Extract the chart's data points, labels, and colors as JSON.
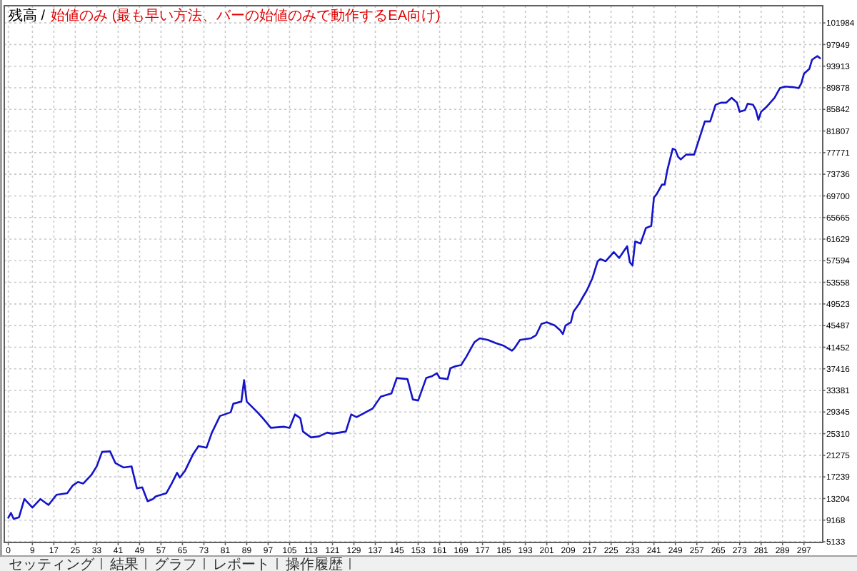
{
  "chart_data": {
    "type": "line",
    "title": "残高 /",
    "subtitle": "始値のみ (最も早い方法、バーの始値のみで動作するEA向け)",
    "annotations": [
      "セッティング",
      "結果",
      "グラフ",
      "レポート",
      "操作履歴"
    ],
    "x": [
      0,
      1,
      2,
      4,
      6,
      9,
      12,
      15,
      18,
      22,
      24,
      26,
      28,
      31,
      33,
      35,
      38,
      40,
      43,
      46,
      48,
      50,
      52,
      54,
      55,
      59,
      61,
      63,
      64,
      66,
      69,
      71,
      74,
      76,
      79,
      83,
      84,
      87,
      88,
      89,
      93,
      95,
      98,
      103,
      105,
      107,
      109,
      110,
      113,
      116,
      119,
      121,
      126,
      128,
      130,
      136,
      139,
      143,
      145,
      149,
      151,
      153,
      156,
      158,
      160,
      161,
      164,
      165,
      167,
      169,
      171,
      174,
      176,
      179,
      182,
      185,
      188,
      189,
      191,
      195,
      197,
      199,
      201,
      204,
      206,
      207,
      208,
      210,
      211,
      213,
      214,
      216,
      218,
      220,
      221,
      223,
      226,
      228,
      231,
      232,
      233,
      234,
      236,
      238,
      240,
      241,
      242,
      244,
      245,
      246,
      248,
      249,
      250,
      251,
      253,
      256,
      258,
      260,
      262,
      264,
      266,
      268,
      270,
      272,
      273,
      275,
      276,
      278,
      279,
      280,
      281,
      283,
      286,
      288,
      290,
      293,
      295,
      296,
      297,
      299,
      300,
      302,
      303
    ],
    "values": [
      9600,
      10500,
      9400,
      9700,
      13100,
      11500,
      13100,
      12000,
      13900,
      14200,
      15600,
      16300,
      16000,
      17600,
      19200,
      21900,
      22000,
      19800,
      19000,
      19200,
      15100,
      15300,
      12700,
      13100,
      13600,
      14200,
      16000,
      18000,
      17100,
      18400,
      21500,
      23000,
      22700,
      25500,
      28600,
      29300,
      30900,
      31300,
      35300,
      31300,
      29300,
      28200,
      26400,
      26600,
      26400,
      28900,
      28200,
      25700,
      24600,
      24800,
      25500,
      25300,
      25700,
      28900,
      28400,
      30000,
      32200,
      32800,
      35700,
      35500,
      31700,
      31500,
      35700,
      36000,
      36600,
      35700,
      35500,
      37500,
      37900,
      38100,
      39700,
      42400,
      43100,
      42800,
      42200,
      41700,
      40800,
      41300,
      42800,
      43100,
      43700,
      45800,
      46100,
      45500,
      44600,
      43900,
      45500,
      46100,
      48100,
      49500,
      50400,
      52100,
      54300,
      57500,
      57900,
      57500,
      59200,
      58100,
      60300,
      57300,
      56700,
      61200,
      60800,
      63700,
      64100,
      69400,
      70000,
      71800,
      71800,
      74500,
      78500,
      78300,
      77000,
      76500,
      77400,
      77400,
      80500,
      83600,
      83600,
      86700,
      87100,
      87100,
      88000,
      87100,
      85400,
      85700,
      86900,
      86700,
      85800,
      83900,
      85400,
      86300,
      88000,
      89800,
      90100,
      90000,
      89800,
      90700,
      92500,
      93400,
      95100,
      95800,
      95400
    ],
    "color": "#1414c8",
    "xlim": [
      -1.5,
      304
    ],
    "ylim": [
      5000,
      105200
    ],
    "xticks": [
      0,
      9,
      17,
      25,
      33,
      41,
      49,
      57,
      65,
      73,
      81,
      89,
      97,
      105,
      113,
      121,
      129,
      137,
      145,
      153,
      161,
      169,
      177,
      185,
      193,
      201,
      209,
      217,
      225,
      233,
      241,
      249,
      257,
      265,
      273,
      281,
      289,
      297
    ],
    "yticks": [
      5133,
      9168,
      13204,
      17239,
      21275,
      25310,
      29345,
      33381,
      37416,
      41452,
      45487,
      49523,
      53558,
      57594,
      61629,
      65665,
      69700,
      73736,
      77771,
      81807,
      85842,
      89878,
      93913,
      97949,
      101984
    ],
    "grid": true
  }
}
